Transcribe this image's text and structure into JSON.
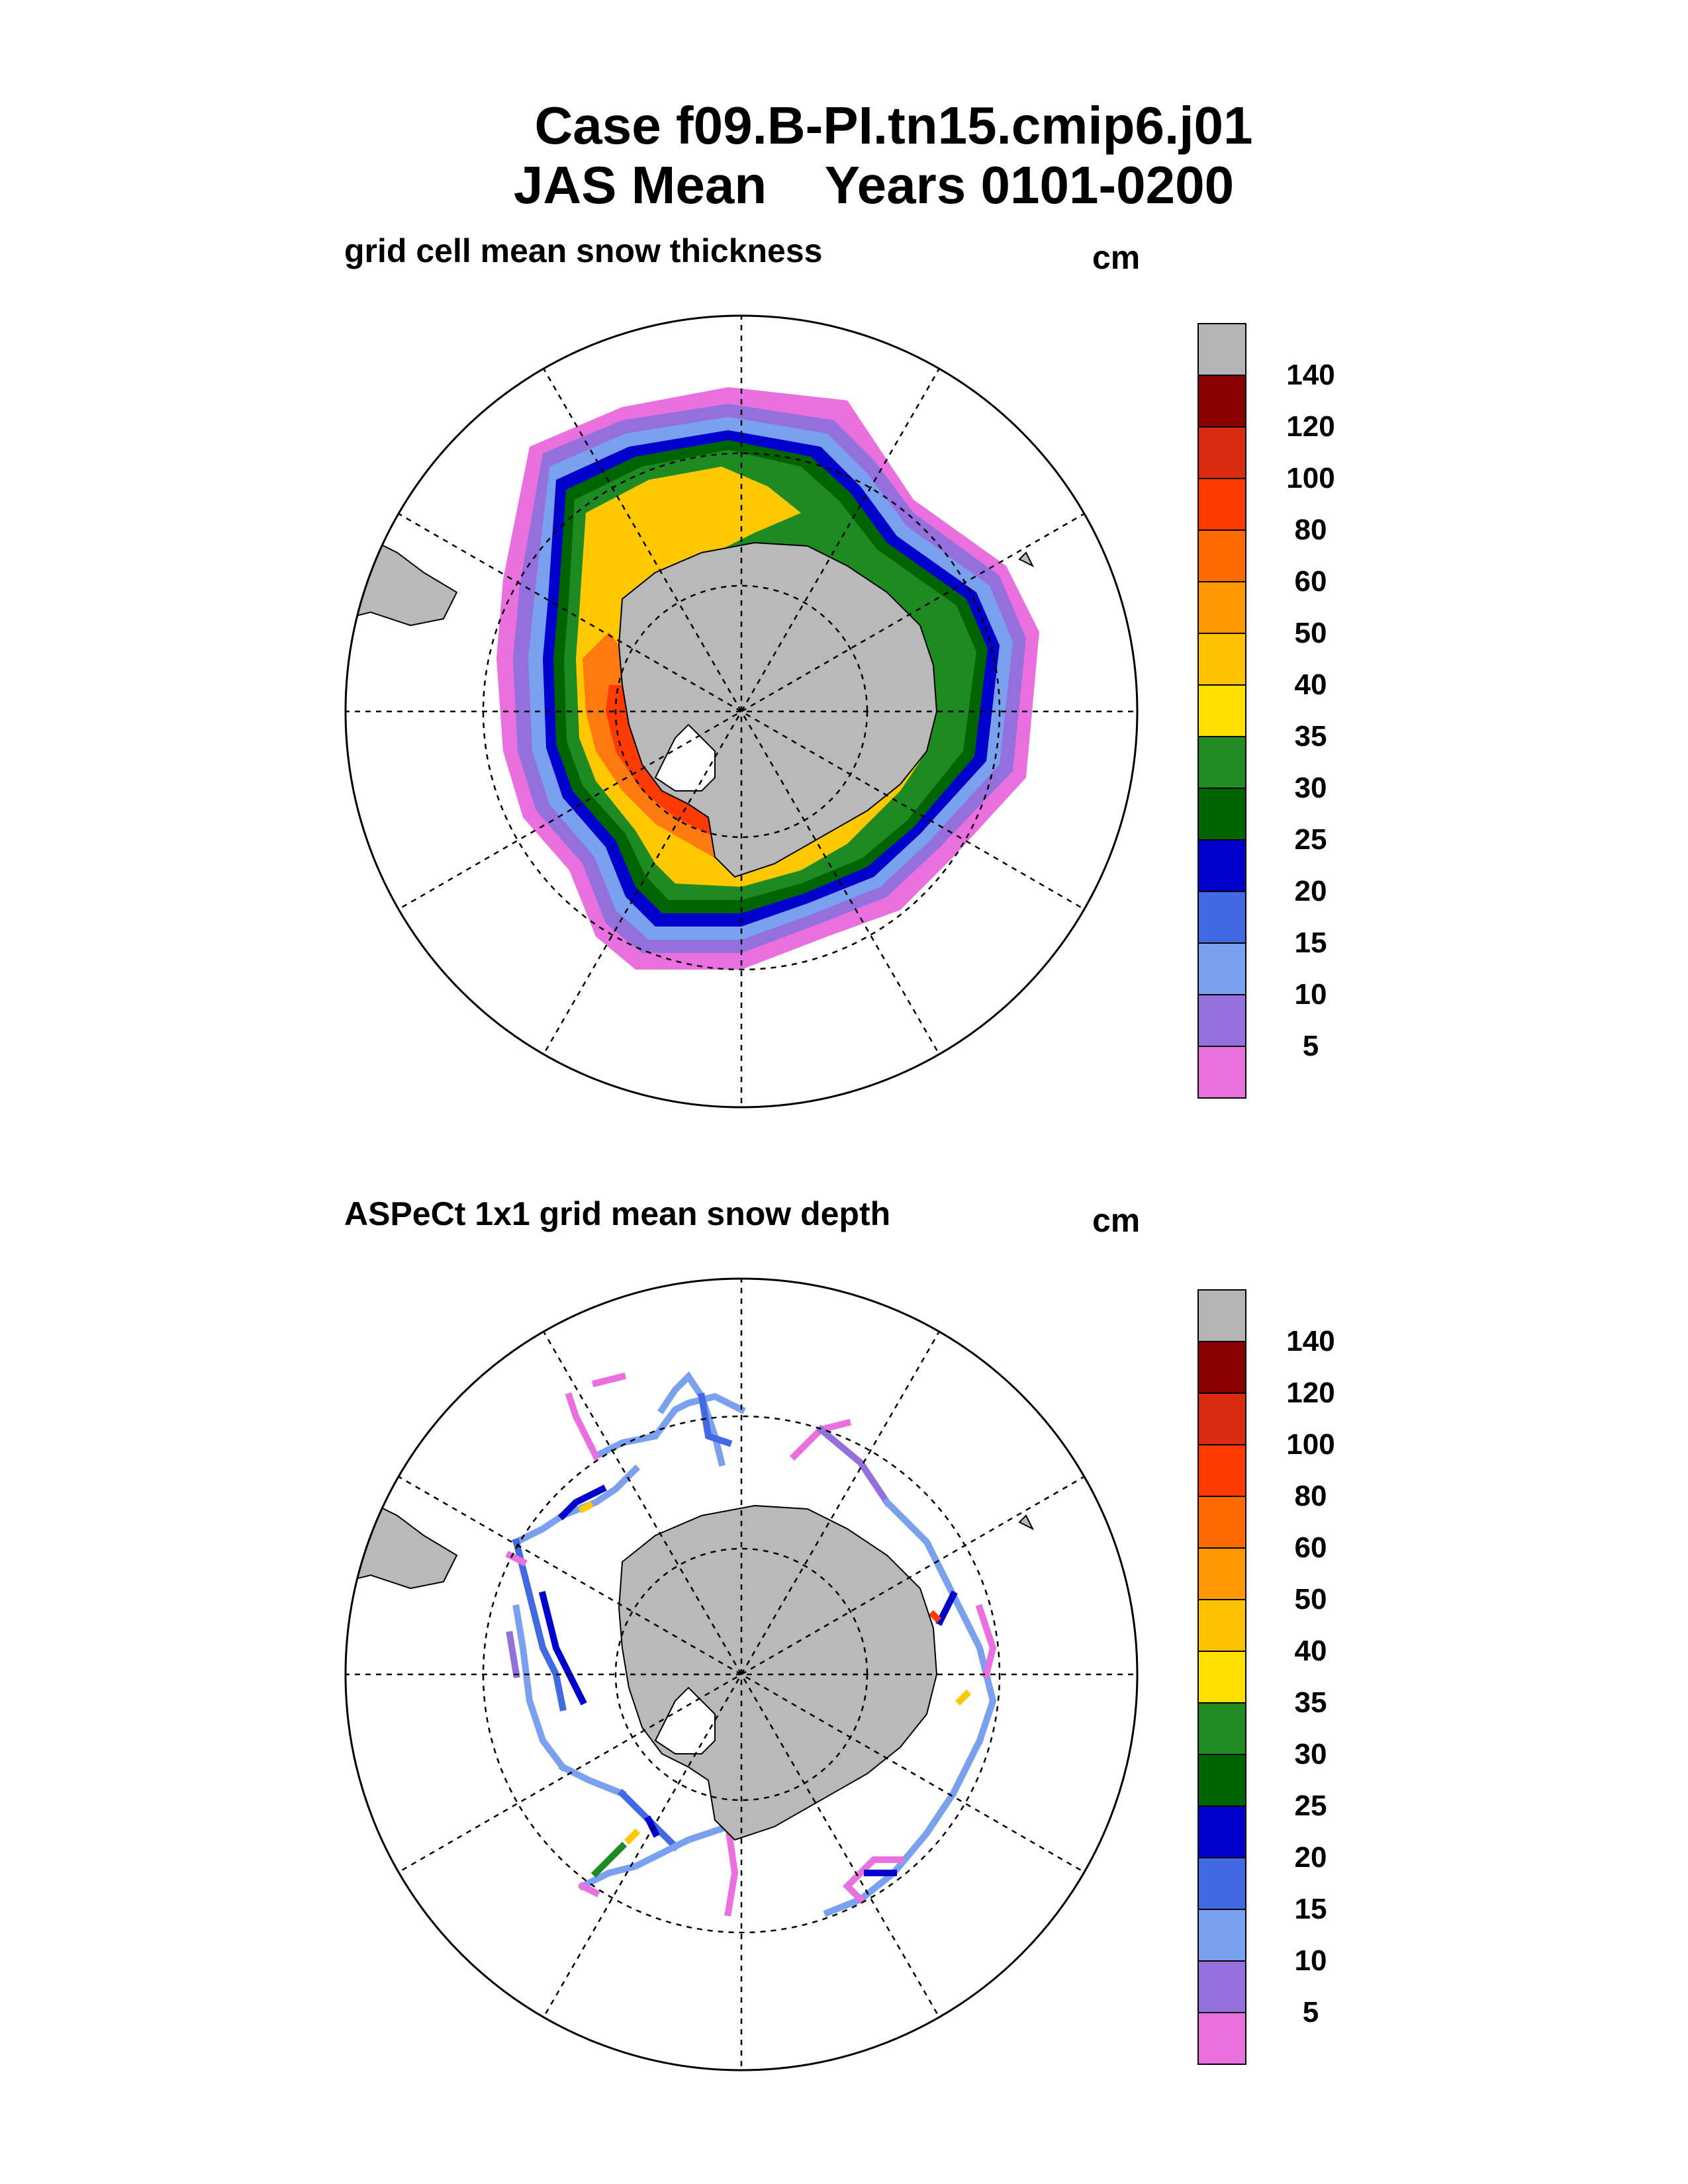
{
  "title_line1": "Case f09.B-PI.tn15.cmip6.j01",
  "title_line2": "JAS Mean    Years 0101-0200",
  "panels": [
    {
      "label": "grid cell mean snow thickness",
      "unit": "cm"
    },
    {
      "label": "ASPeCt 1x1 grid mean snow depth",
      "unit": "cm"
    }
  ],
  "colorbar": {
    "labels": [
      "140",
      "120",
      "100",
      "80",
      "60",
      "50",
      "40",
      "35",
      "30",
      "25",
      "20",
      "15",
      "10",
      "5"
    ],
    "colors": [
      "#b4b4b4",
      "#8b0000",
      "#d92b10",
      "#ff3a00",
      "#ff6a00",
      "#ff9800",
      "#ffc100",
      "#ffe000",
      "#228b22",
      "#006400",
      "#0000cd",
      "#4169e1",
      "#7aa0f0",
      "#9370db",
      "#ea70e0"
    ]
  },
  "colors": {
    "land": "#b9b9b9",
    "yellow": "#ffc800",
    "orange": "#ff7a10",
    "green": "#1e8b22",
    "dark_green": "#006400",
    "blue": "#0000cd",
    "light_blue": "#7aa0f0",
    "purple": "#9370db",
    "pink": "#ea70e0"
  }
}
